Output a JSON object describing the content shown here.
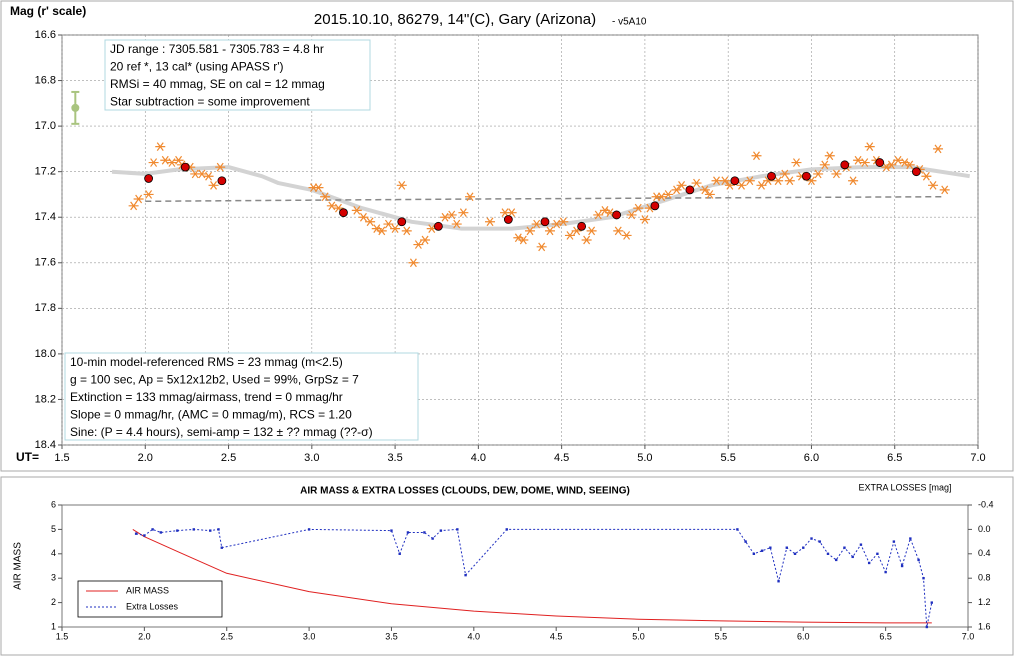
{
  "chart_data": [
    {
      "type": "scatter",
      "title": "2015.10.10, 86279, 14\"(C), Gary (Arizona)",
      "subtitle": "- v5A10",
      "y_label": "Mag (r' scale)",
      "x_label": "UT=",
      "xlim": [
        1.5,
        7.0
      ],
      "xticks": [
        1.5,
        {
          "value": 2,
          "label": "2.0"
        },
        2.5,
        {
          "value": 3,
          "label": "3.0"
        },
        3.5,
        {
          "value": 4,
          "label": "4.0"
        },
        4.5,
        {
          "value": 5,
          "label": "5.0"
        },
        5.5,
        {
          "value": 6,
          "label": "6.0"
        },
        6.5,
        {
          "value": 7,
          "label": "7.0"
        }
      ],
      "ylim": [
        18.4,
        16.6
      ],
      "yticks": [
        16.6,
        16.8,
        {
          "value": 17,
          "label": "17.0"
        },
        17.2,
        17.4,
        17.6,
        17.8,
        {
          "value": 18,
          "label": "18.0"
        },
        18.2,
        18.4
      ],
      "grid": true,
      "info_boxes": [
        [
          "JD range : 7305.581 - 7305.783 = 4.8 hr",
          " 20 ref *, 13 cal* (using APASS r')",
          "RMSi = 40 mmag, SE on cal = 12 mmag",
          "Star subtraction = some improvement"
        ],
        [
          "10-min model-referenced RMS = 23 mmag (m<2.5)",
          "g = 100 sec, Ap = 5x12x12b2, Used = 99%,  GrpSz = 7",
          "Extinction = 133 mmag/airmass, trend = 0 mmag/hr",
          "Slope = 0 mmag/hr, (AMC = 0 mmag/m), RCS = 1.20",
          "Sine: (P = 4.4 hours), semi-amp = 132 ± ?? mmag (??-σ)"
        ]
      ],
      "error_bar": {
        "x": 1.58,
        "value": 16.92,
        "error": 0.07,
        "color": "#a9c47f"
      },
      "series": [
        {
          "kind": "line",
          "color": "#d3d3d3",
          "width": 4,
          "x": [
            1.8,
            2.0,
            2.2,
            2.5,
            2.7,
            2.8,
            3.0,
            3.3,
            3.6,
            3.9,
            4.2,
            4.5,
            4.8,
            5.1,
            5.4,
            5.7,
            6.0,
            6.3,
            6.6,
            6.95
          ],
          "values": [
            17.2,
            17.21,
            17.19,
            17.18,
            17.22,
            17.25,
            17.28,
            17.36,
            17.42,
            17.45,
            17.45,
            17.43,
            17.4,
            17.33,
            17.26,
            17.22,
            17.19,
            17.18,
            17.18,
            17.22
          ]
        },
        {
          "kind": "line",
          "color": "#888888",
          "width": 1.5,
          "dashed": true,
          "x": [
            2.0,
            4.0,
            6.8
          ],
          "values": [
            17.33,
            17.32,
            17.31
          ]
        },
        {
          "kind": "asterisk",
          "color": "#f08a30",
          "x": [
            1.93,
            1.96,
            2.02,
            2.05,
            2.09,
            2.12,
            2.16,
            2.2,
            2.22,
            2.27,
            2.3,
            2.34,
            2.38,
            2.41,
            2.45,
            3.01,
            3.04,
            3.08,
            3.12,
            3.16,
            3.27,
            3.31,
            3.35,
            3.39,
            3.42,
            3.46,
            3.5,
            3.54,
            3.57,
            3.61,
            3.64,
            3.68,
            3.72,
            3.8,
            3.84,
            3.87,
            3.91,
            3.95,
            4.07,
            4.16,
            4.2,
            4.24,
            4.27,
            4.31,
            4.35,
            4.38,
            4.43,
            4.47,
            4.51,
            4.55,
            4.59,
            4.65,
            4.68,
            4.72,
            4.76,
            4.79,
            4.84,
            4.89,
            4.92,
            4.96,
            5.0,
            5.03,
            5.07,
            5.1,
            5.14,
            5.19,
            5.22,
            5.31,
            5.36,
            5.39,
            5.43,
            5.48,
            5.51,
            5.58,
            5.63,
            5.67,
            5.7,
            5.74,
            5.8,
            5.84,
            5.87,
            5.91,
            5.94,
            6.0,
            6.04,
            6.08,
            6.11,
            6.15,
            6.21,
            6.25,
            6.28,
            6.32,
            6.35,
            6.39,
            6.45,
            6.48,
            6.52,
            6.56,
            6.59,
            6.65,
            6.69,
            6.73,
            6.76,
            6.8
          ],
          "values": [
            17.35,
            17.32,
            17.3,
            17.16,
            17.09,
            17.15,
            17.16,
            17.15,
            17.17,
            17.18,
            17.21,
            17.21,
            17.22,
            17.26,
            17.18,
            17.27,
            17.27,
            17.31,
            17.35,
            17.36,
            17.37,
            17.4,
            17.42,
            17.45,
            17.46,
            17.43,
            17.45,
            17.26,
            17.46,
            17.6,
            17.52,
            17.5,
            17.45,
            17.4,
            17.39,
            17.43,
            17.38,
            17.31,
            17.42,
            17.38,
            17.38,
            17.49,
            17.5,
            17.46,
            17.43,
            17.53,
            17.46,
            17.43,
            17.42,
            17.48,
            17.46,
            17.5,
            17.46,
            17.39,
            17.37,
            17.38,
            17.46,
            17.48,
            17.39,
            17.36,
            17.41,
            17.36,
            17.31,
            17.31,
            17.3,
            17.28,
            17.26,
            17.25,
            17.28,
            17.3,
            17.24,
            17.24,
            17.26,
            17.26,
            17.24,
            17.13,
            17.26,
            17.24,
            17.24,
            17.21,
            17.24,
            17.16,
            17.22,
            17.24,
            17.21,
            17.17,
            17.13,
            17.21,
            17.18,
            17.24,
            17.15,
            17.16,
            17.09,
            17.15,
            17.18,
            17.17,
            17.15,
            17.16,
            17.17,
            17.19,
            17.22,
            17.26,
            17.1,
            17.28
          ]
        },
        {
          "kind": "circle",
          "color": "#d40000",
          "x": [
            2.02,
            2.24,
            2.46,
            3.19,
            3.54,
            3.76,
            4.18,
            4.4,
            4.62,
            4.83,
            5.06,
            5.27,
            5.54,
            5.76,
            5.97,
            6.2,
            6.41,
            6.63
          ],
          "values": [
            17.23,
            17.18,
            17.24,
            17.38,
            17.42,
            17.44,
            17.41,
            17.42,
            17.44,
            17.39,
            17.35,
            17.28,
            17.24,
            17.22,
            17.22,
            17.17,
            17.16,
            17.2
          ]
        }
      ]
    },
    {
      "type": "line",
      "title": "AIR MASS & EXTRA LOSSES (CLOUDS, DEW, DOME, WIND, SEEING)",
      "y_label": "AIR MASS",
      "y2_label": "EXTRA LOSSES [mag]",
      "xlim": [
        1.5,
        7.0
      ],
      "xticks": [
        1.5,
        {
          "value": 2,
          "label": "2.0"
        },
        2.5,
        {
          "value": 3,
          "label": "3.0"
        },
        3.5,
        {
          "value": 4,
          "label": "4.0"
        },
        4.5,
        {
          "value": 5,
          "label": "5.0"
        },
        5.5,
        {
          "value": 6,
          "label": "6.0"
        },
        6.5,
        {
          "value": 7,
          "label": "7.0"
        }
      ],
      "ylim": [
        1,
        6
      ],
      "yticks": [
        1,
        2,
        3,
        4,
        5,
        6
      ],
      "y2lim": [
        1.6,
        -0.4
      ],
      "y2ticks": [
        -0.4,
        {
          "value": 0,
          "label": "0.0"
        },
        0.4,
        0.8,
        1.2,
        1.6
      ],
      "grid": false,
      "legend": "bottom-left",
      "series": [
        {
          "name": "AIR MASS",
          "color": "#e02020",
          "kind": "line",
          "x": [
            1.93,
            2.0,
            2.2,
            2.5,
            3.0,
            3.5,
            4.0,
            4.5,
            5.0,
            5.5,
            6.0,
            6.5,
            6.78
          ],
          "values": [
            5.0,
            4.7,
            4.1,
            3.2,
            2.45,
            1.95,
            1.65,
            1.45,
            1.32,
            1.25,
            1.2,
            1.17,
            1.17
          ]
        },
        {
          "name": "Extra Losses",
          "color": "#1f2fc0",
          "kind": "line",
          "dashed": true,
          "markers": true,
          "axis": "y2",
          "x": [
            1.95,
            2.0,
            2.05,
            2.1,
            2.2,
            2.3,
            2.4,
            2.45,
            2.47,
            3.0,
            3.5,
            3.55,
            3.6,
            3.7,
            3.75,
            3.8,
            3.9,
            3.95,
            4.2,
            5.6,
            5.65,
            5.7,
            5.75,
            5.8,
            5.85,
            5.9,
            5.95,
            6.0,
            6.05,
            6.1,
            6.15,
            6.2,
            6.25,
            6.3,
            6.35,
            6.4,
            6.45,
            6.5,
            6.55,
            6.6,
            6.65,
            6.7,
            6.73,
            6.75,
            6.78
          ],
          "values": [
            0.07,
            0.1,
            0.0,
            0.05,
            0.02,
            0.0,
            0.02,
            0.0,
            0.3,
            0.0,
            0.02,
            0.4,
            0.05,
            0.05,
            0.15,
            0.02,
            0.0,
            0.75,
            0.0,
            0.0,
            0.2,
            0.4,
            0.35,
            0.3,
            0.85,
            0.3,
            0.4,
            0.3,
            0.15,
            0.2,
            0.4,
            0.5,
            0.3,
            0.45,
            0.25,
            0.55,
            0.4,
            0.7,
            0.2,
            0.6,
            0.15,
            0.5,
            0.8,
            1.6,
            1.2
          ]
        }
      ]
    }
  ]
}
